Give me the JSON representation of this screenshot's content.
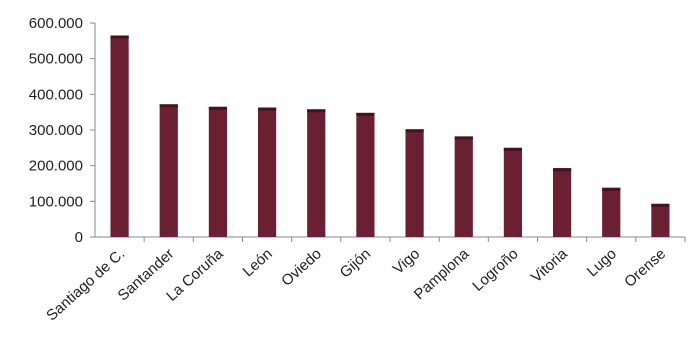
{
  "chart_data": {
    "type": "bar",
    "categories": [
      "Santiago de C.",
      "Santander",
      "La Coruña",
      "León",
      "Oviedo",
      "Gijón",
      "Vigo",
      "Pamplona",
      "Logroño",
      "Vitoria",
      "Lugo",
      "Orense"
    ],
    "values": [
      565000,
      372000,
      365000,
      363000,
      358000,
      348000,
      302000,
      282000,
      250000,
      193000,
      138000,
      93000
    ],
    "title": "",
    "xlabel": "",
    "ylabel": "",
    "ylim": [
      0,
      600000
    ],
    "yticks": [
      "0",
      "100.000",
      "200.000",
      "300.000",
      "400.000",
      "500.000",
      "600.000"
    ],
    "grid": false,
    "legend": "none",
    "bar_color": "#6b1f33",
    "bar_side_color": "#4a1020"
  }
}
